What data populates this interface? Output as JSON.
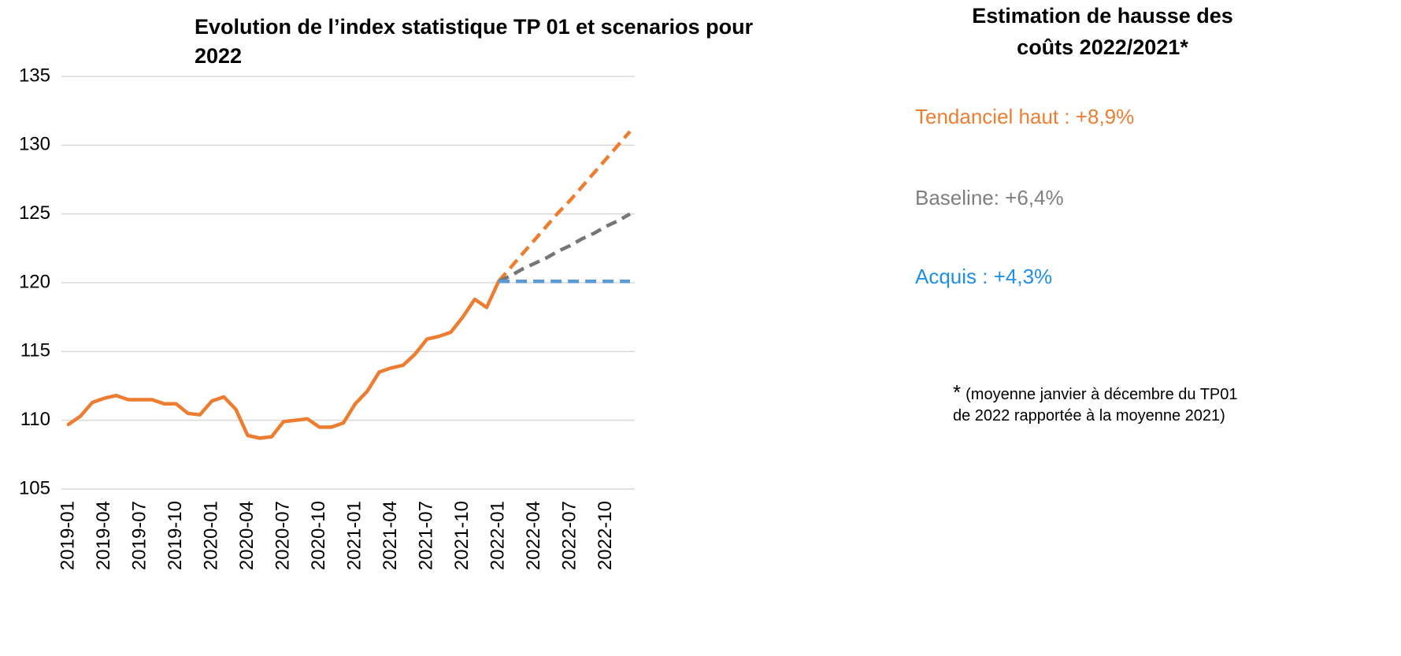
{
  "chart_data": {
    "type": "line",
    "title": "Evolution de l’index statistique TP 01 et scenarios pour 2022",
    "categories": [
      "2019-01",
      null,
      null,
      "2019-04",
      null,
      null,
      "2019-07",
      null,
      null,
      "2019-10",
      null,
      null,
      "2020-01",
      null,
      null,
      "2020-04",
      null,
      null,
      "2020-07",
      null,
      null,
      "2020-10",
      null,
      null,
      "2021-01",
      null,
      null,
      "2021-04",
      null,
      null,
      "2021-07",
      null,
      null,
      "2021-10",
      null,
      null,
      "2022-01",
      null,
      null,
      "2022-04",
      null,
      null,
      "2022-07",
      null,
      null,
      "2022-10",
      null,
      null
    ],
    "series": [
      {
        "color": "#ed7d31",
        "dashed": false,
        "values": [
          109.7,
          110.3,
          111.3,
          111.6,
          111.8,
          111.5,
          111.5,
          111.5,
          111.2,
          111.2,
          110.5,
          110.4,
          111.4,
          111.7,
          110.8,
          108.9,
          108.7,
          108.8,
          109.9,
          110.0,
          110.1,
          109.5,
          109.5,
          109.8,
          111.2,
          112.1,
          113.5,
          113.8,
          114.0,
          114.8,
          115.9,
          116.1,
          116.4,
          117.5,
          118.8,
          118.2,
          120.1,
          null,
          null,
          null,
          null,
          null,
          null,
          null,
          null,
          null,
          null,
          null
        ]
      },
      {
        "color": "#ed7d31",
        "dashed": true,
        "values": [
          null,
          null,
          null,
          null,
          null,
          null,
          null,
          null,
          null,
          null,
          null,
          null,
          null,
          null,
          null,
          null,
          null,
          null,
          null,
          null,
          null,
          null,
          null,
          null,
          null,
          null,
          null,
          null,
          null,
          null,
          null,
          null,
          null,
          null,
          null,
          null,
          120.1,
          121.1,
          122.1,
          123.1,
          124.1,
          125.1,
          126.0,
          127.0,
          128.0,
          129.0,
          130.0,
          131.0
        ]
      },
      {
        "color": "#767676",
        "dashed": true,
        "values": [
          null,
          null,
          null,
          null,
          null,
          null,
          null,
          null,
          null,
          null,
          null,
          null,
          null,
          null,
          null,
          null,
          null,
          null,
          null,
          null,
          null,
          null,
          null,
          null,
          null,
          null,
          null,
          null,
          null,
          null,
          null,
          null,
          null,
          null,
          null,
          null,
          120.1,
          120.5,
          121.0,
          121.4,
          121.8,
          122.3,
          122.7,
          123.2,
          123.6,
          124.1,
          124.5,
          125.0
        ]
      },
      {
        "color": "#5b9bd5",
        "dashed": true,
        "values": [
          null,
          null,
          null,
          null,
          null,
          null,
          null,
          null,
          null,
          null,
          null,
          null,
          null,
          null,
          null,
          null,
          null,
          null,
          null,
          null,
          null,
          null,
          null,
          null,
          null,
          null,
          null,
          null,
          null,
          null,
          null,
          null,
          null,
          null,
          null,
          null,
          120.1,
          120.1,
          120.1,
          120.1,
          120.1,
          120.1,
          120.1,
          120.1,
          120.1,
          120.1,
          120.1,
          120.1
        ]
      }
    ],
    "ylim": [
      105,
      135
    ],
    "yticks": [
      105,
      110,
      115,
      120,
      125,
      130,
      135
    ],
    "grid": true,
    "side_title": "Estimation de hausse des coûts 2022/2021*",
    "annotations": [
      {
        "text": "Tendanciel haut : +8,9%",
        "color": "#ed7d31"
      },
      {
        "text": "Baseline: +6,4%",
        "color": "#7f7f7f"
      },
      {
        "text": "Acquis : +4,3%",
        "color": "#1f8fe5"
      }
    ],
    "footnote_mark": "*",
    "footnote": "(moyenne janvier à décembre du TP01 de 2022 rapportée à la moyenne 2021)"
  }
}
